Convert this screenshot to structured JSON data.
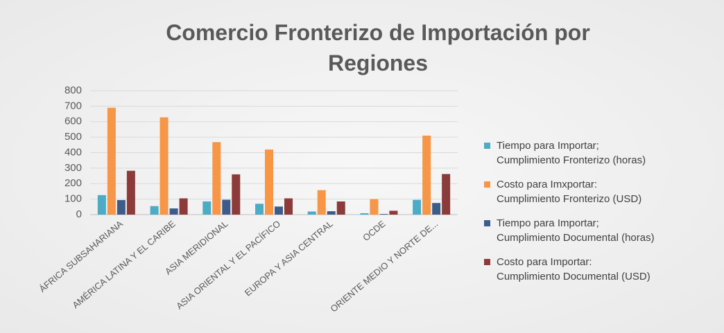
{
  "chart_data": {
    "type": "bar",
    "title": "Comercio Fronterizo de Importación por Regiones",
    "categories": [
      "ÁFRICA SUBSAHARIANA",
      "AMÉRICA LATINA Y EL CARIBE",
      "ASIA MERIDIONAL",
      "ASIA ORIENTAL Y EL PACÍFICO",
      "EUROPA Y ASIA CENTRAL",
      "OCDE",
      "ORIENTE MEDIO Y NORTE DE..."
    ],
    "series": [
      {
        "name": "Tiempo para Importar;\nCumplimiento Fronterizo  (horas)",
        "color": "#4bacc6",
        "values": [
          126,
          55,
          85,
          70,
          20,
          9,
          95
        ]
      },
      {
        "name": "Costo para Imxportar:\nCumplimiento Fronterizo (USD)",
        "color": "#f79646",
        "values": [
          690,
          628,
          468,
          420,
          158,
          100,
          510
        ]
      },
      {
        "name": "Tiempo para Importar;\nCumplimiento Documental  (horas)",
        "color": "#3e5c8a",
        "values": [
          94,
          40,
          96,
          52,
          22,
          4,
          75
        ]
      },
      {
        "name": "Costo para Importar:\nCumplimiento Documental (USD)",
        "color": "#8c3a3a",
        "values": [
          283,
          105,
          260,
          105,
          85,
          25,
          262
        ]
      }
    ],
    "ylim": [
      0,
      800
    ],
    "yticks": [
      0,
      100,
      200,
      300,
      400,
      500,
      600,
      700,
      800
    ],
    "grid": true,
    "legend": "right"
  }
}
